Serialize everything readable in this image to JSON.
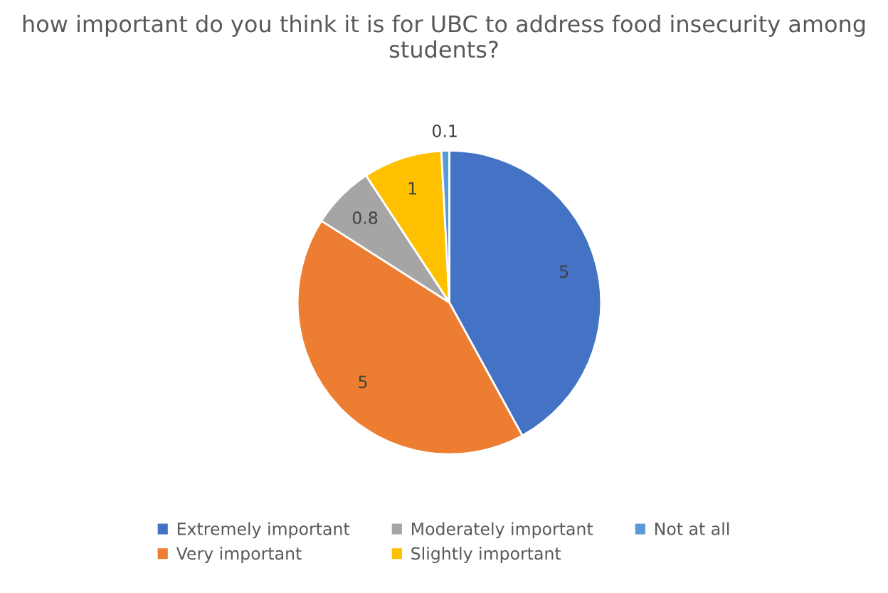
{
  "chart_data": {
    "type": "pie",
    "title": "how important do you think it is for UBC to address food insecurity among students?",
    "categories": [
      "Extremely important",
      "Very important",
      "Moderately important",
      "Slightly important",
      "Not at all"
    ],
    "values": [
      5,
      5,
      0.8,
      1,
      0.1
    ],
    "colors": [
      "#4472c4",
      "#ed7d31",
      "#a5a5a5",
      "#ffc000",
      "#5b9bd5"
    ],
    "data_labels": true,
    "legend": "bottom"
  }
}
